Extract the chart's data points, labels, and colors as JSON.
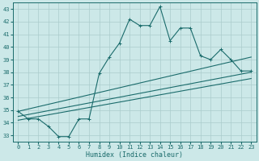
{
  "title": "",
  "xlabel": "Humidex (Indice chaleur)",
  "ylabel": "",
  "background_color": "#cce8e8",
  "line_color": "#1a6b6b",
  "grid_color": "#aacccc",
  "xlim": [
    -0.5,
    23.5
  ],
  "ylim": [
    32.5,
    43.5
  ],
  "yticks": [
    33,
    34,
    35,
    36,
    37,
    38,
    39,
    40,
    41,
    42,
    43
  ],
  "xticks": [
    0,
    1,
    2,
    3,
    4,
    5,
    6,
    7,
    8,
    9,
    10,
    11,
    12,
    13,
    14,
    15,
    16,
    17,
    18,
    19,
    20,
    21,
    22,
    23
  ],
  "main_series": {
    "x": [
      0,
      1,
      2,
      3,
      4,
      5,
      6,
      7,
      8,
      9,
      10,
      11,
      12,
      13,
      14,
      15,
      16,
      17,
      18,
      19,
      20,
      21,
      22,
      23
    ],
    "y": [
      34.9,
      34.3,
      34.3,
      33.7,
      32.9,
      32.9,
      34.3,
      34.3,
      37.9,
      39.2,
      40.3,
      42.2,
      41.7,
      41.7,
      43.2,
      40.5,
      41.5,
      41.5,
      39.3,
      39.0,
      39.8,
      39.0,
      38.1,
      38.1
    ]
  },
  "trend1": {
    "x": [
      0,
      23
    ],
    "y": [
      34.9,
      39.2
    ]
  },
  "trend2": {
    "x": [
      0,
      23
    ],
    "y": [
      34.5,
      38.0
    ]
  },
  "trend3": {
    "x": [
      0,
      23
    ],
    "y": [
      34.2,
      37.5
    ]
  }
}
